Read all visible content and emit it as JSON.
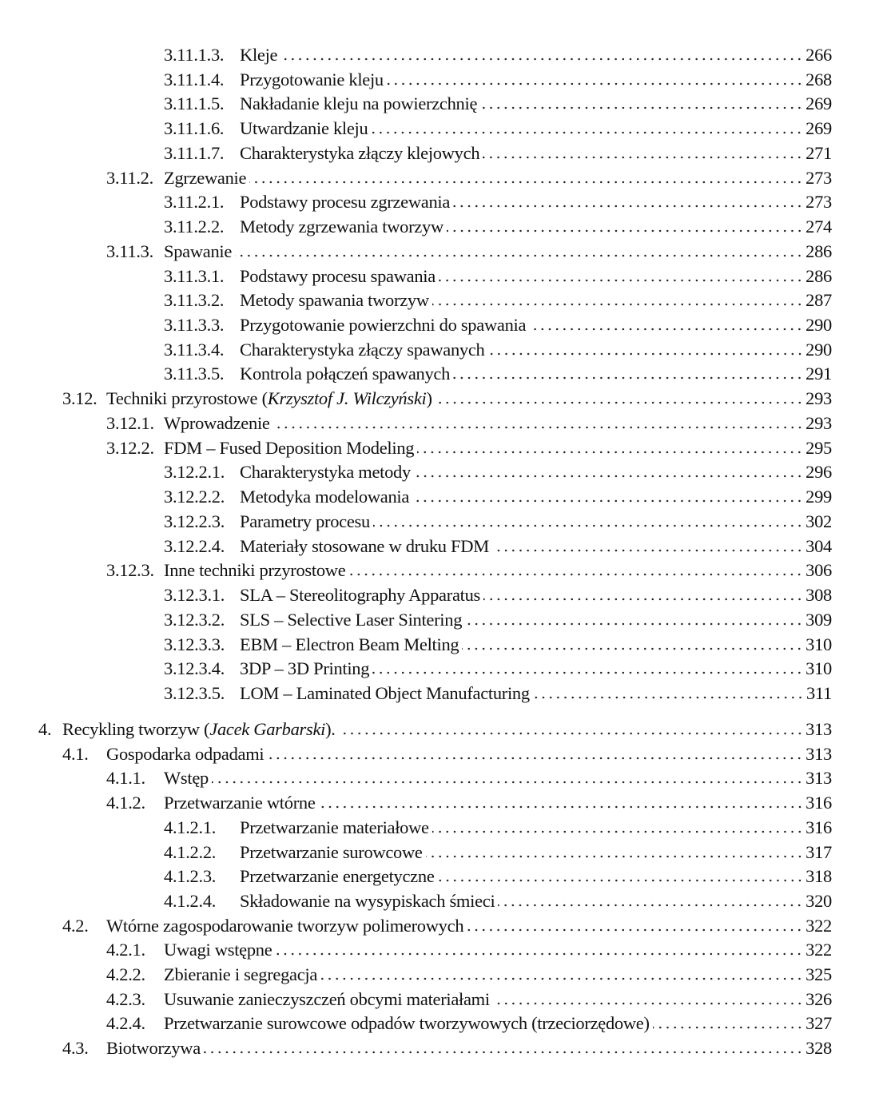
{
  "entries": [
    {
      "level": 3,
      "num": "3.11.1.3.",
      "title": "Kleje",
      "page": "266"
    },
    {
      "level": 3,
      "num": "3.11.1.4.",
      "title": "Przygotowanie kleju",
      "page": "268"
    },
    {
      "level": 3,
      "num": "3.11.1.5.",
      "title": "Nakładanie kleju na powierzchnię",
      "page": "269"
    },
    {
      "level": 3,
      "num": "3.11.1.6.",
      "title": "Utwardzanie kleju",
      "page": "269"
    },
    {
      "level": 3,
      "num": "3.11.1.7.",
      "title": "Charakterystyka złączy klejowych",
      "page": "271"
    },
    {
      "level": 2,
      "num": "3.11.2.",
      "title": "Zgrzewanie",
      "page": "273"
    },
    {
      "level": 3,
      "num": "3.11.2.1.",
      "title": "Podstawy procesu zgrzewania",
      "page": "273"
    },
    {
      "level": 3,
      "num": "3.11.2.2.",
      "title": "Metody zgrzewania tworzyw",
      "page": "274"
    },
    {
      "level": 2,
      "num": "3.11.3.",
      "title": "Spawanie",
      "page": "286"
    },
    {
      "level": 3,
      "num": "3.11.3.1.",
      "title": "Podstawy procesu spawania",
      "page": "286"
    },
    {
      "level": 3,
      "num": "3.11.3.2.",
      "title": "Metody spawania tworzyw",
      "page": "287"
    },
    {
      "level": 3,
      "num": "3.11.3.3.",
      "title": "Przygotowanie powierzchni do spawania",
      "page": "290"
    },
    {
      "level": 3,
      "num": "3.11.3.4.",
      "title": "Charakterystyka złączy spawanych",
      "page": "290"
    },
    {
      "level": 3,
      "num": "3.11.3.5.",
      "title": "Kontrola połączeń spawanych",
      "page": "291"
    },
    {
      "level": 1,
      "num": "3.12.",
      "title": "Techniki przyrostowe (",
      "author": "Krzysztof J. Wilczyński",
      "close": ")",
      "page": "293"
    },
    {
      "level": 2,
      "num": "3.12.1.",
      "title": "Wprowadzenie",
      "page": "293"
    },
    {
      "level": 2,
      "num": "3.12.2.",
      "title": "FDM – Fused Deposition Modeling",
      "page": "295"
    },
    {
      "level": 3,
      "num": "3.12.2.1.",
      "title": "Charakterystyka metody",
      "page": "296"
    },
    {
      "level": 3,
      "num": "3.12.2.2.",
      "title": "Metodyka modelowania",
      "page": "299"
    },
    {
      "level": 3,
      "num": "3.12.2.3.",
      "title": "Parametry procesu",
      "page": "302"
    },
    {
      "level": 3,
      "num": "3.12.2.4.",
      "title": "Materiały stosowane w druku FDM",
      "page": "304"
    },
    {
      "level": 2,
      "num": "3.12.3.",
      "title": "Inne techniki przyrostowe",
      "page": "306"
    },
    {
      "level": 3,
      "num": "3.12.3.1.",
      "title": "SLA – Stereolitography Apparatus",
      "page": "308"
    },
    {
      "level": 3,
      "num": "3.12.3.2.",
      "title": "SLS – Selective Laser Sintering",
      "page": "309"
    },
    {
      "level": 3,
      "num": "3.12.3.3.",
      "title": "EBM – Electron Beam Melting",
      "page": "310"
    },
    {
      "level": 3,
      "num": "3.12.3.4.",
      "title": "3DP – 3D Printing",
      "page": "310"
    },
    {
      "level": 3,
      "num": "3.12.3.5.",
      "title": "LOM – Laminated Object Manufacturing",
      "page": "311"
    },
    {
      "level": 0,
      "num": "4.",
      "title": "Recykling tworzyw (",
      "author": "Jacek Garbarski",
      "close": ").",
      "page": "313"
    },
    {
      "level": 1,
      "num": "4.1.",
      "title": "Gospodarka odpadami",
      "page": "313"
    },
    {
      "level": 2,
      "num": "4.1.1.",
      "title": "Wstęp",
      "page": "313"
    },
    {
      "level": 2,
      "num": "4.1.2.",
      "title": "Przetwarzanie wtórne",
      "page": "316"
    },
    {
      "level": 3,
      "num": "4.1.2.1.",
      "title": "Przetwarzanie materiałowe",
      "page": "316"
    },
    {
      "level": 3,
      "num": "4.1.2.2.",
      "title": "Przetwarzanie surowcowe",
      "page": "317"
    },
    {
      "level": 3,
      "num": "4.1.2.3.",
      "title": "Przetwarzanie energetyczne",
      "page": "318"
    },
    {
      "level": 3,
      "num": "4.1.2.4.",
      "title": "Składowanie na wysypiskach śmieci",
      "page": "320"
    },
    {
      "level": 1,
      "num": "4.2.",
      "title": "Wtórne zagospodarowanie tworzyw polimerowych",
      "page": "322"
    },
    {
      "level": 2,
      "num": "4.2.1.",
      "title": "Uwagi wstępne",
      "page": "322"
    },
    {
      "level": 2,
      "num": "4.2.2.",
      "title": "Zbieranie i segregacja",
      "page": "325"
    },
    {
      "level": 2,
      "num": "4.2.3.",
      "title": "Usuwanie zanieczyszczeń obcymi materiałami",
      "page": "326"
    },
    {
      "level": 2,
      "num": "4.2.4.",
      "title": "Przetwarzanie surowcowe odpadów tworzywowych (trzeciorzędowe)",
      "page": "327"
    },
    {
      "level": 1,
      "num": "4.3.",
      "title": "Biotworzywa",
      "page": "328"
    }
  ]
}
